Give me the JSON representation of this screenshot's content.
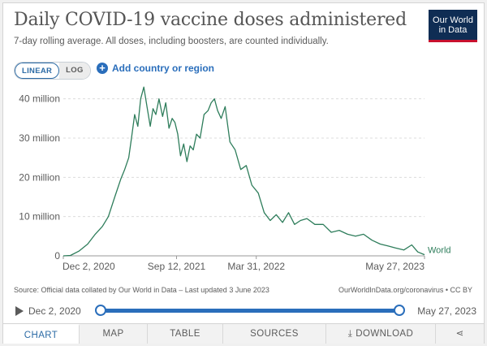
{
  "title": "Daily COVID-19 vaccine doses administered",
  "subtitle": "7-day rolling average. All doses, including boosters, are counted individually.",
  "logo": {
    "line1": "Our World",
    "line2": "in Data"
  },
  "scale_toggle": {
    "linear": "LINEAR",
    "log": "LOG",
    "selected": "LINEAR"
  },
  "add_country": {
    "icon": "plus-circle-icon",
    "label": "Add country or region"
  },
  "source": "Source: Official data collated by Our World in Data – Last updated 3 June 2023",
  "credit": "OurWorldInData.org/coronavirus • CC BY",
  "timeline": {
    "start_label": "Dec 2, 2020",
    "end_label": "May 27, 2023"
  },
  "tabs": [
    {
      "label": "CHART",
      "active": true
    },
    {
      "label": "MAP",
      "active": false
    },
    {
      "label": "TABLE",
      "active": false
    },
    {
      "label": "SOURCES",
      "active": false
    },
    {
      "label": "DOWNLOAD",
      "active": false,
      "icon": "download-icon"
    },
    {
      "label": "",
      "active": false,
      "icon": "share-icon"
    }
  ],
  "colors": {
    "line": "#2e7d5b",
    "accent": "#2a6ebb",
    "logo_bg": "#0f2d54",
    "logo_bar": "#c8102e"
  },
  "chart_data": {
    "type": "line",
    "title": "Daily COVID-19 vaccine doses administered",
    "xlabel": "",
    "ylabel": "",
    "ylim": [
      0,
      42000000
    ],
    "yticks": [
      {
        "value": 0,
        "label": "0"
      },
      {
        "value": 10000000,
        "label": "10 million"
      },
      {
        "value": 20000000,
        "label": "20 million"
      },
      {
        "value": 30000000,
        "label": "30 million"
      },
      {
        "value": 40000000,
        "label": "40 million"
      }
    ],
    "xlim": [
      "2020-12-02",
      "2023-05-27"
    ],
    "xticks": [
      {
        "date": "2020-12-02",
        "label": "Dec 2, 2020"
      },
      {
        "date": "2021-09-12",
        "label": "Sep 12, 2021"
      },
      {
        "date": "2022-03-31",
        "label": "Mar 31, 2022"
      },
      {
        "date": "2023-05-27",
        "label": "May 27, 2023"
      }
    ],
    "grid": "horizontal dashed",
    "series": [
      {
        "name": "World",
        "x": [
          "2020-12-02",
          "2020-12-20",
          "2021-01-10",
          "2021-02-01",
          "2021-02-20",
          "2021-03-10",
          "2021-03-25",
          "2021-04-10",
          "2021-04-25",
          "2021-05-05",
          "2021-05-15",
          "2021-05-22",
          "2021-05-30",
          "2021-06-07",
          "2021-06-14",
          "2021-06-22",
          "2021-06-30",
          "2021-07-08",
          "2021-07-15",
          "2021-07-22",
          "2021-07-30",
          "2021-08-08",
          "2021-08-16",
          "2021-08-24",
          "2021-09-01",
          "2021-09-08",
          "2021-09-15",
          "2021-09-22",
          "2021-09-30",
          "2021-10-08",
          "2021-10-16",
          "2021-10-24",
          "2021-11-01",
          "2021-11-10",
          "2021-11-20",
          "2021-11-30",
          "2021-12-08",
          "2021-12-16",
          "2021-12-24",
          "2022-01-02",
          "2022-01-12",
          "2022-01-24",
          "2022-02-06",
          "2022-02-20",
          "2022-03-06",
          "2022-03-20",
          "2022-04-05",
          "2022-04-20",
          "2022-05-05",
          "2022-05-20",
          "2022-06-05",
          "2022-06-20",
          "2022-07-05",
          "2022-07-20",
          "2022-08-05",
          "2022-08-25",
          "2022-09-15",
          "2022-10-05",
          "2022-10-25",
          "2022-11-15",
          "2022-12-05",
          "2022-12-25",
          "2023-01-15",
          "2023-02-05",
          "2023-02-25",
          "2023-03-15",
          "2023-04-05",
          "2023-04-25",
          "2023-05-10",
          "2023-05-27"
        ],
        "values": [
          0,
          100000,
          1200000,
          3000000,
          5500000,
          7500000,
          10000000,
          15000000,
          19500000,
          22000000,
          25000000,
          30000000,
          36000000,
          33000000,
          40000000,
          43000000,
          38000000,
          33000000,
          37500000,
          36000000,
          40000000,
          35500000,
          39000000,
          32500000,
          35000000,
          34000000,
          31000000,
          25500000,
          28500000,
          24000000,
          28000000,
          27000000,
          31000000,
          30000000,
          36000000,
          37000000,
          39000000,
          40000000,
          37000000,
          35000000,
          38000000,
          29000000,
          27000000,
          22000000,
          23000000,
          18000000,
          16000000,
          11000000,
          9000000,
          10500000,
          8500000,
          11000000,
          8000000,
          9000000,
          9500000,
          8000000,
          8000000,
          6000000,
          6500000,
          5500000,
          5000000,
          5500000,
          4000000,
          3000000,
          2500000,
          2000000,
          1500000,
          2800000,
          1000000,
          300000
        ]
      }
    ]
  }
}
